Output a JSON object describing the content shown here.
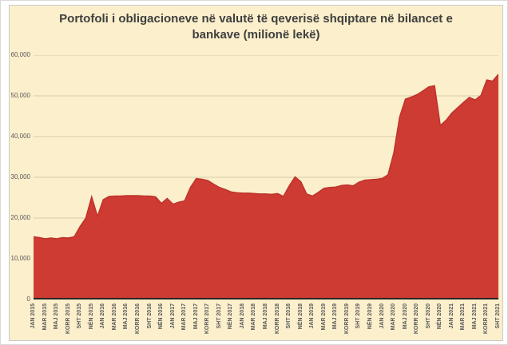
{
  "page_title": "Portofoli i obligacioneve në valutë të qeverisë shqiptare në bilancet e bankave (milionë lekë)",
  "chart_data": {
    "type": "area",
    "title": "Portofoli i obligacioneve në valutë të qeverisë shqiptare në bilancet e bankave (milionë lekë)",
    "xlabel": "",
    "ylabel": "",
    "ylim": [
      0,
      60000
    ],
    "grid": "horizontal",
    "legend": "none",
    "y_ticks": [
      60000,
      50000,
      40000,
      30000,
      20000,
      10000,
      0
    ],
    "y_tick_labels": [
      "60,000",
      "50,000",
      "40,000",
      "30,000",
      "20,000",
      "10,000",
      "0"
    ],
    "x_tick_labels": [
      "JAN 2015",
      "MAR 2015",
      "MAJ 2015",
      "KORR 2015",
      "SHT 2015",
      "NËN 2015",
      "JAN 2016",
      "MAR 2016",
      "MAJ 2016",
      "KORR 2016",
      "SHT 2016",
      "NËN 2016",
      "JAN 2017",
      "MAR 2017",
      "MAJ 2017",
      "KORR 2017",
      "SHT 2017",
      "NËN 2017",
      "JAN 2018",
      "MAR 2018",
      "MAJ 2018",
      "KORR 2018",
      "SHT 2018",
      "NËN 2018",
      "JAN 2019",
      "MAR 2019",
      "MAJ 2019",
      "KORR 2019",
      "SHT 2019",
      "NËN 2019",
      "JAN 2020",
      "MAR 2020",
      "MAJ 2020",
      "KORR 2020",
      "SHT 2020",
      "NËN 2020",
      "JAN 2021",
      "MAR 2021",
      "MAJ 2021",
      "KORR 2021",
      "SHT 2021"
    ],
    "x_tick_every_n_points": 2,
    "series_name": "Portofoli i obligacioneve në valutë (milionë lekë)",
    "data_start": "JAN 2015",
    "data_end": "SHT 2021",
    "data_frequency": "monthly",
    "values": [
      15400,
      15200,
      14900,
      15100,
      14900,
      15200,
      15100,
      15400,
      17900,
      20000,
      25200,
      20400,
      24500,
      25300,
      25400,
      25400,
      25500,
      25500,
      25500,
      25400,
      25400,
      25200,
      23600,
      24800,
      23400,
      23900,
      24200,
      27500,
      29700,
      29500,
      29200,
      28300,
      27500,
      27000,
      26400,
      26200,
      26100,
      26100,
      26000,
      25900,
      25900,
      25800,
      26000,
      25300,
      27900,
      30100,
      28900,
      25900,
      25400,
      26300,
      27300,
      27500,
      27600,
      28000,
      28100,
      27900,
      28800,
      29300,
      29400,
      29500,
      29700,
      30600,
      36000,
      44800,
      49200,
      49700,
      50300,
      51200,
      52200,
      52500,
      42700,
      44000,
      45800,
      47100,
      48400,
      49600,
      49000,
      50100,
      53900,
      53600,
      55300
    ],
    "colors": {
      "plot_background": "#fbefcc",
      "area_fill": "#ce3b32",
      "area_edge": "#be332b",
      "gridline": "#d8cca8",
      "axis_line": "#262626",
      "tick_text": "#595959",
      "title_text": "#3f3f3f"
    }
  }
}
